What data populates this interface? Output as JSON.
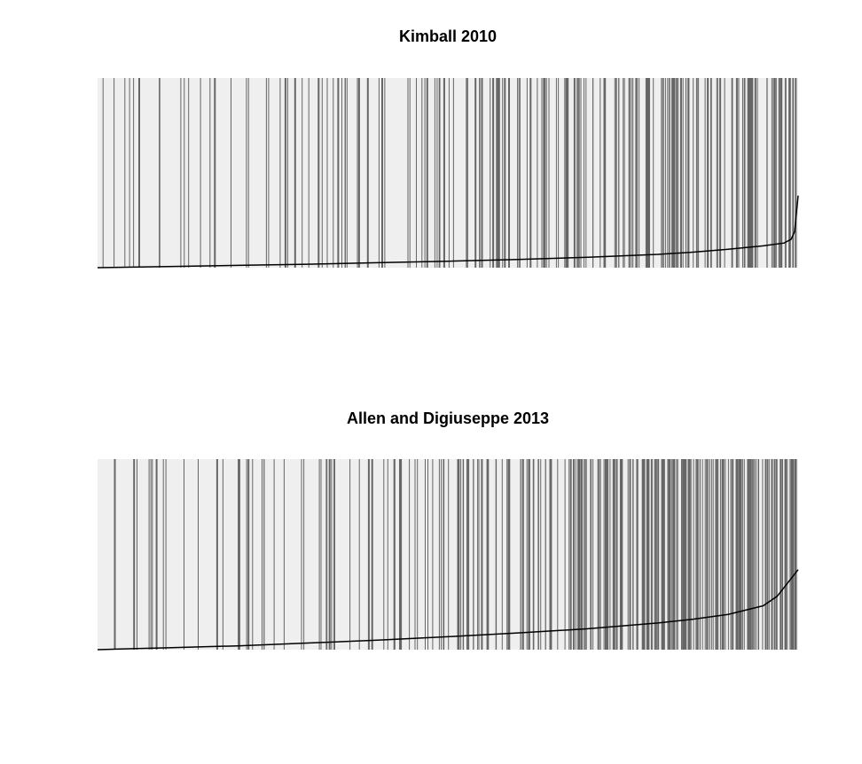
{
  "colors": {
    "panel_background": "#efefef",
    "event_line": "#666666",
    "curve": "#000000"
  },
  "chart_data": [
    {
      "type": "line",
      "title": "Kimball 2010",
      "xlabel": "",
      "ylabel": "",
      "axes_visible": false,
      "grid": false,
      "legend": "none",
      "xlim": [
        0,
        1
      ],
      "ylim": [
        0,
        1
      ],
      "description_of_marks": "vertical lines mark observed (event) positions along the ordered x range; black line is a monotone increasing curve",
      "event_density": [
        {
          "from": 0.0,
          "to": 0.2,
          "count": 16
        },
        {
          "from": 0.2,
          "to": 0.4,
          "count": 22
        },
        {
          "from": 0.4,
          "to": 0.55,
          "count": 24
        },
        {
          "from": 0.55,
          "to": 0.68,
          "count": 28
        },
        {
          "from": 0.68,
          "to": 0.82,
          "count": 45
        },
        {
          "from": 0.82,
          "to": 1.0,
          "count": 75
        }
      ],
      "series": [
        {
          "x": [
            0.0,
            0.05,
            0.1,
            0.2,
            0.3,
            0.4,
            0.5,
            0.6,
            0.7,
            0.8,
            0.85,
            0.9,
            0.95,
            0.98,
            0.99,
            0.995,
            1.0
          ],
          "y": [
            0.0,
            0.003,
            0.006,
            0.012,
            0.018,
            0.026,
            0.034,
            0.043,
            0.055,
            0.07,
            0.082,
            0.097,
            0.115,
            0.13,
            0.15,
            0.19,
            0.38
          ]
        }
      ]
    },
    {
      "type": "line",
      "title": "Allen and Digiuseppe 2013",
      "xlabel": "",
      "ylabel": "",
      "axes_visible": false,
      "grid": false,
      "legend": "none",
      "xlim": [
        0,
        1
      ],
      "ylim": [
        0,
        1
      ],
      "description_of_marks": "vertical lines mark observed (event) positions along the ordered x range; black line is a monotone increasing curve",
      "event_density": [
        {
          "from": 0.0,
          "to": 0.2,
          "count": 14
        },
        {
          "from": 0.2,
          "to": 0.4,
          "count": 26
        },
        {
          "from": 0.4,
          "to": 0.52,
          "count": 24
        },
        {
          "from": 0.52,
          "to": 0.68,
          "count": 45
        },
        {
          "from": 0.68,
          "to": 0.82,
          "count": 70
        },
        {
          "from": 0.82,
          "to": 1.0,
          "count": 110
        }
      ],
      "series": [
        {
          "x": [
            0.0,
            0.05,
            0.1,
            0.2,
            0.3,
            0.4,
            0.5,
            0.6,
            0.7,
            0.8,
            0.85,
            0.9,
            0.95,
            0.97,
            0.985,
            1.0
          ],
          "y": [
            0.0,
            0.005,
            0.01,
            0.02,
            0.035,
            0.05,
            0.068,
            0.088,
            0.11,
            0.14,
            0.16,
            0.185,
            0.23,
            0.28,
            0.35,
            0.42
          ]
        }
      ]
    }
  ]
}
